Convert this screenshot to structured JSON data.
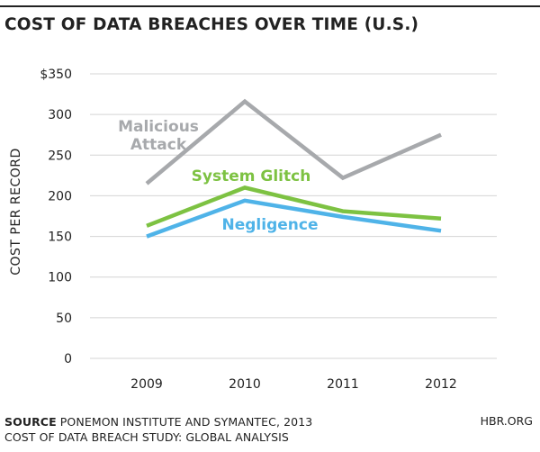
{
  "chart_data": {
    "type": "line",
    "title": "COST OF DATA BREACHES OVER TIME (U.S.)",
    "xlabel": "",
    "ylabel": "COST PER RECORD",
    "categories": [
      "2009",
      "2010",
      "2011",
      "2012"
    ],
    "ylim": [
      0,
      350
    ],
    "yticks": [
      0,
      50,
      100,
      150,
      200,
      250,
      300,
      350
    ],
    "ytick_labels": [
      "0",
      "50",
      "100",
      "150",
      "200",
      "250",
      "300",
      "$350"
    ],
    "grid": true,
    "series": [
      {
        "name": "Malicious Attack",
        "values": [
          215,
          316,
          222,
          275
        ],
        "color": "#a7a9ac"
      },
      {
        "name": "System Glitch",
        "values": [
          163,
          210,
          181,
          172
        ],
        "color": "#7dc242"
      },
      {
        "name": "Negligence",
        "values": [
          150,
          194,
          174,
          157
        ],
        "color": "#4fb3e8"
      }
    ],
    "labels": {
      "malicious_line1": "Malicious",
      "malicious_line2": "Attack",
      "system_glitch": "System Glitch",
      "negligence": "Negligence"
    }
  },
  "footer": {
    "source_label": "SOURCE",
    "source_text": " PONEMON INSTITUTE AND SYMANTEC, 2013",
    "source_line2": "COST OF DATA BREACH STUDY: GLOBAL ANALYSIS",
    "credit": "HBR.ORG"
  }
}
